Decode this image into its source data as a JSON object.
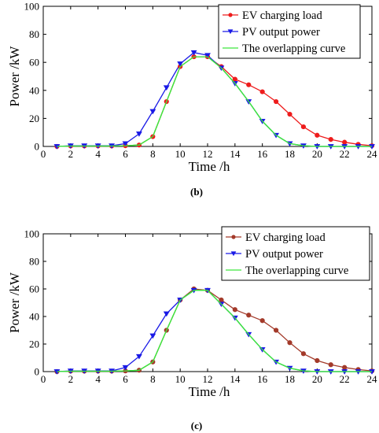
{
  "chart_data": [
    {
      "panel": "(b)",
      "type": "line",
      "xlabel": "Time /h",
      "ylabel": "Power /kW",
      "xlim": [
        0,
        24
      ],
      "ylim": [
        0,
        100
      ],
      "xticks": [
        0,
        2,
        4,
        6,
        8,
        10,
        12,
        14,
        16,
        18,
        20,
        22,
        24
      ],
      "yticks": [
        0,
        20,
        40,
        60,
        80,
        100
      ],
      "legend_position": "top-right",
      "grid": false,
      "x": [
        1,
        2,
        3,
        4,
        5,
        6,
        7,
        8,
        9,
        10,
        11,
        12,
        13,
        14,
        15,
        16,
        17,
        18,
        19,
        20,
        21,
        22,
        23,
        24
      ],
      "series": [
        {
          "name": "EV charging load",
          "color": "#ee1c1c",
          "marker": "circle",
          "values": [
            0,
            0.3,
            0.3,
            0.3,
            0.3,
            0.5,
            1,
            7,
            32,
            57,
            64,
            64,
            57,
            48,
            44,
            39,
            32,
            23,
            14,
            8,
            5,
            3,
            1.5,
            0.5
          ]
        },
        {
          "name": "PV output power",
          "color": "#1a1ae6",
          "marker": "triangle-down",
          "values": [
            0,
            0.5,
            0.5,
            0.5,
            0.5,
            2,
            9,
            25,
            42,
            59,
            67,
            65,
            56,
            45,
            32,
            18,
            8,
            2,
            0.5,
            0,
            0,
            0,
            0,
            0
          ]
        },
        {
          "name": "The overlapping curve",
          "color": "#3ee63e",
          "marker": "none",
          "values": [
            0,
            0.3,
            0.3,
            0.3,
            0.3,
            0.5,
            1,
            7,
            32,
            57,
            64,
            64,
            56,
            45,
            32,
            18,
            8,
            2,
            0.5,
            0,
            0,
            0,
            0,
            0
          ]
        }
      ]
    },
    {
      "panel": "(c)",
      "type": "line",
      "xlabel": "Time /h",
      "ylabel": "Power /kW",
      "xlim": [
        0,
        24
      ],
      "ylim": [
        0,
        100
      ],
      "xticks": [
        0,
        2,
        4,
        6,
        8,
        10,
        12,
        14,
        16,
        18,
        20,
        22,
        24
      ],
      "yticks": [
        0,
        20,
        40,
        60,
        80,
        100
      ],
      "legend_position": "top-right",
      "grid": false,
      "x": [
        1,
        2,
        3,
        4,
        5,
        6,
        7,
        8,
        9,
        10,
        11,
        12,
        13,
        14,
        15,
        16,
        17,
        18,
        19,
        20,
        21,
        22,
        23,
        24
      ],
      "series": [
        {
          "name": "EV charging load",
          "color": "#a33a2a",
          "marker": "circle",
          "values": [
            0,
            0.3,
            0.3,
            0.3,
            0.3,
            0.5,
            1,
            7,
            30,
            52,
            60,
            59,
            52,
            45,
            41,
            37,
            30,
            21,
            13,
            8,
            5,
            3,
            1.5,
            0.5
          ]
        },
        {
          "name": "PV output power",
          "color": "#1a1ae6",
          "marker": "triangle-down",
          "values": [
            0,
            0.5,
            0.5,
            0.5,
            0.5,
            3,
            11,
            26,
            42,
            52,
            59,
            59,
            49,
            39,
            27,
            16,
            7,
            2.5,
            0.5,
            0,
            0,
            0,
            0,
            0
          ]
        },
        {
          "name": "The overlapping curve",
          "color": "#3ee63e",
          "marker": "none",
          "values": [
            0,
            0.3,
            0.3,
            0.3,
            0.3,
            0.5,
            1,
            7,
            30,
            52,
            59,
            59,
            49,
            39,
            27,
            16,
            7,
            2.5,
            0.5,
            0,
            0,
            0,
            0,
            0
          ]
        }
      ]
    }
  ]
}
